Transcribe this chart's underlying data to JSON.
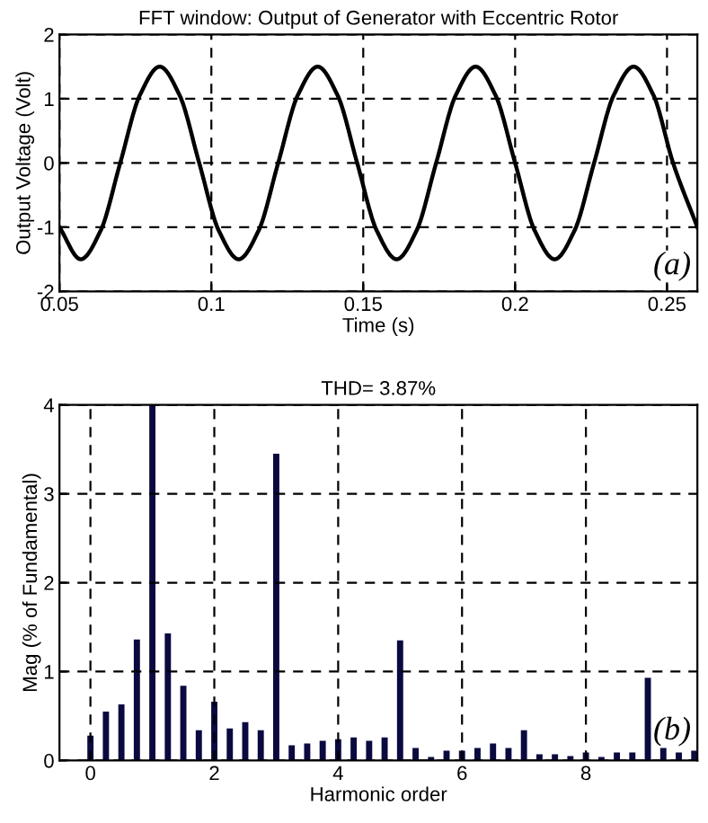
{
  "chart_data": [
    {
      "type": "line",
      "title": "FFT window: Output of Generator with Eccentric Rotor",
      "xlabel": "Time (s)",
      "ylabel": "Output Voltage (Volt)",
      "series": [
        {
          "color": "#000000",
          "x": [
            0.05,
            0.057,
            0.0635,
            0.07,
            0.0765,
            0.083,
            0.0895,
            0.096,
            0.1025,
            0.109,
            0.1155,
            0.122,
            0.1285,
            0.135,
            0.1415,
            0.148,
            0.1545,
            0.161,
            0.1675,
            0.174,
            0.1805,
            0.187,
            0.1935,
            0.2,
            0.2065,
            0.213,
            0.2195,
            0.226,
            0.2325,
            0.239,
            0.2455,
            0.252,
            0.26
          ],
          "values": [
            -1.0,
            -1.5,
            -1.06,
            0,
            1.06,
            1.5,
            1.06,
            0,
            -1.06,
            -1.5,
            -1.06,
            0,
            1.06,
            1.5,
            1.06,
            0,
            -1.06,
            -1.5,
            -1.06,
            0,
            1.06,
            1.5,
            1.06,
            0,
            -1.06,
            -1.5,
            -1.06,
            0,
            1.06,
            1.5,
            1.06,
            0,
            -1.0
          ]
        }
      ],
      "xlim": [
        0.05,
        0.26
      ],
      "ylim": [
        -2,
        2
      ],
      "xticks": [
        0.05,
        0.1,
        0.15,
        0.2,
        0.25
      ],
      "yticks": [
        -2,
        -1,
        0,
        1,
        2
      ],
      "grid": true,
      "line_style": "solid",
      "marker": "none",
      "annotations": [
        "(a)"
      ]
    },
    {
      "type": "bar",
      "title": "THD= 3.87%",
      "xlabel": "Harmonic order",
      "ylabel": "Mag (% of Fundamental)",
      "x": [
        0,
        0.25,
        0.5,
        0.75,
        1,
        1.25,
        1.5,
        1.75,
        2,
        2.25,
        2.5,
        2.75,
        3,
        3.25,
        3.5,
        3.75,
        4,
        4.25,
        4.5,
        4.75,
        5,
        5.25,
        5.5,
        5.75,
        6,
        6.25,
        6.5,
        6.75,
        7,
        7.25,
        7.5,
        7.75,
        8,
        8.25,
        8.5,
        8.75,
        9,
        9.25,
        9.5,
        9.75
      ],
      "series": [
        {
          "color": "#0a0a40",
          "values": [
            0.28,
            0.55,
            0.63,
            1.36,
            4,
            1.43,
            0.84,
            0.34,
            0.66,
            0.36,
            0.43,
            0.34,
            3.45,
            0.17,
            0.19,
            0.22,
            0.24,
            0.26,
            0.22,
            0.26,
            1.35,
            0.14,
            0.04,
            0.11,
            0.11,
            0.14,
            0.19,
            0.14,
            0.34,
            0.07,
            0.07,
            0.05,
            0.09,
            0.04,
            0.09,
            0.09,
            0.93,
            0.14,
            0.09,
            0.11
          ]
        }
      ],
      "xlim": [
        -0.5,
        9.8
      ],
      "ylim": [
        0,
        4
      ],
      "xticks": [
        0,
        2,
        4,
        6,
        8
      ],
      "yticks": [
        0,
        1,
        2,
        3,
        4
      ],
      "grid": true,
      "annotations": [
        "(b)"
      ]
    }
  ]
}
